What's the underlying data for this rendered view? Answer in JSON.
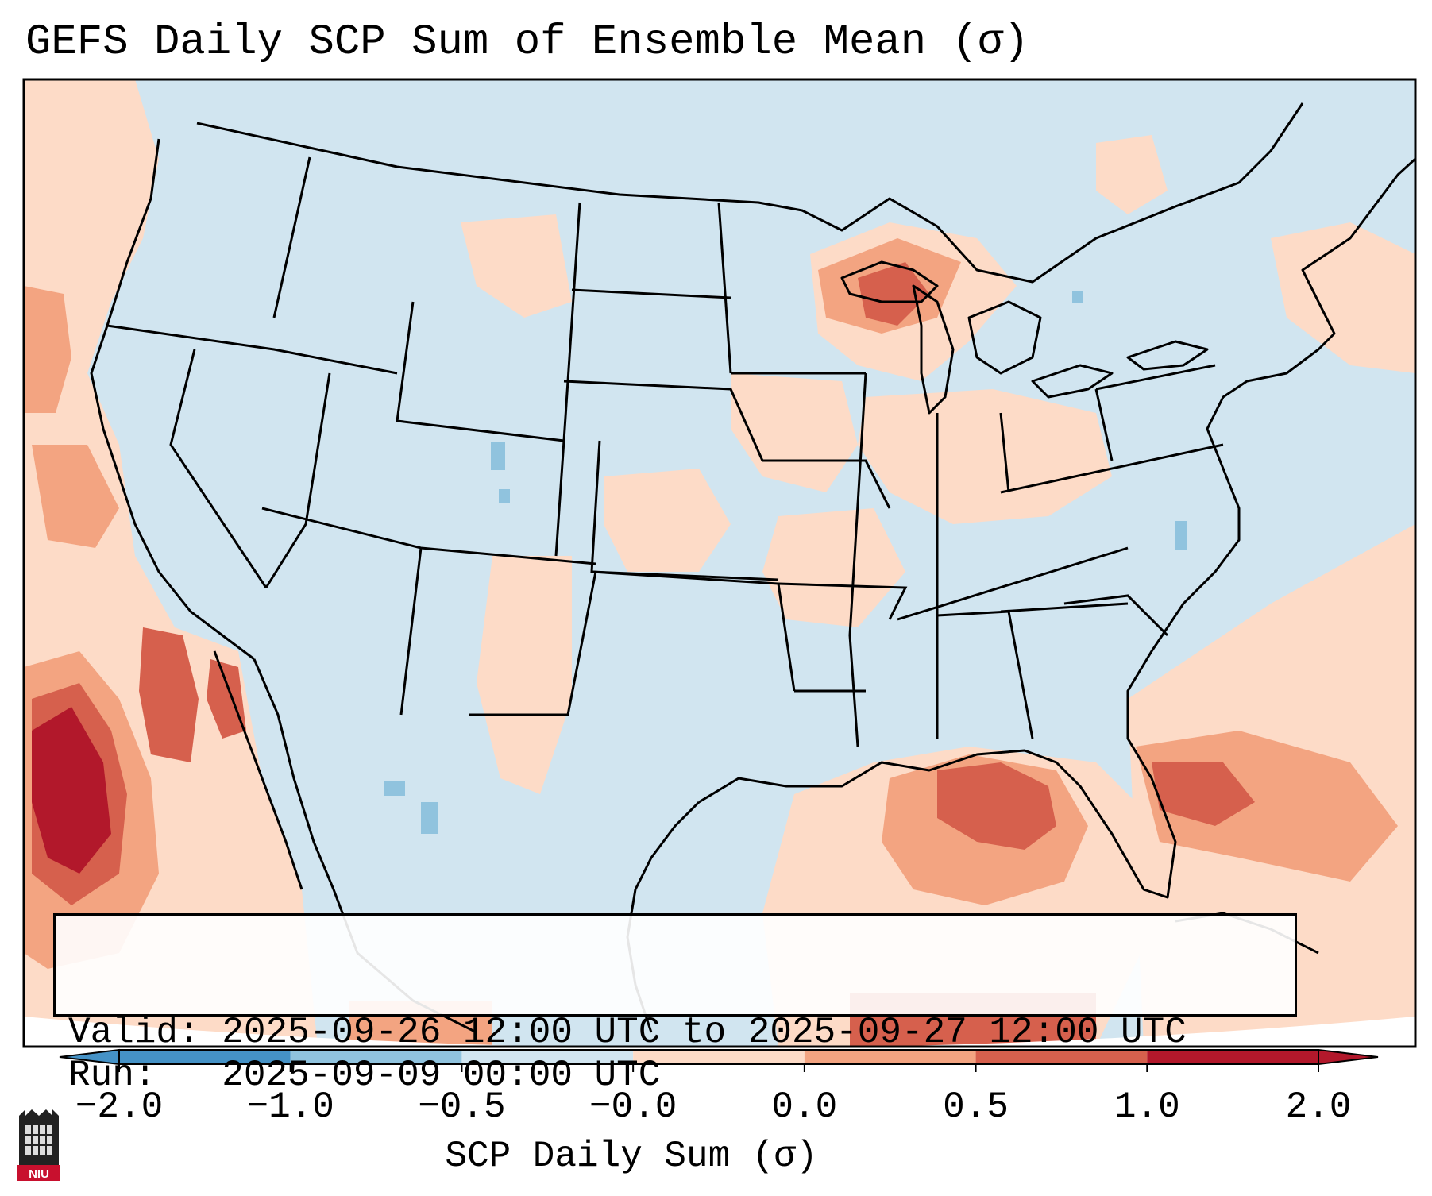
{
  "title": "GEFS Daily SCP Sum of Ensemble Mean (σ)",
  "info": {
    "valid_label": "Valid:",
    "valid_range": "2025-09-26 12:00 UTC to 2025-09-27 12:00 UTC",
    "run_label": "Run:",
    "run_time": "2025-09-09 00:00 UTC"
  },
  "colorbar": {
    "label": "SCP Daily Sum (σ)",
    "ticks": [
      "−2.0",
      "−1.0",
      "−0.5",
      "−0.0",
      "0.0",
      "0.5",
      "1.0",
      "2.0"
    ],
    "bin_colors": [
      "#4592c6",
      "#90c3de",
      "#d1e5f0",
      "#f7f7f7",
      "#fddbc7",
      "#f3a481",
      "#d6604d",
      "#b2182b"
    ],
    "extend": "both"
  },
  "map": {
    "region": "Continental United States",
    "background_color": "#d1e5f0",
    "border_color": "#000000"
  },
  "logo": {
    "text": "NIU"
  }
}
